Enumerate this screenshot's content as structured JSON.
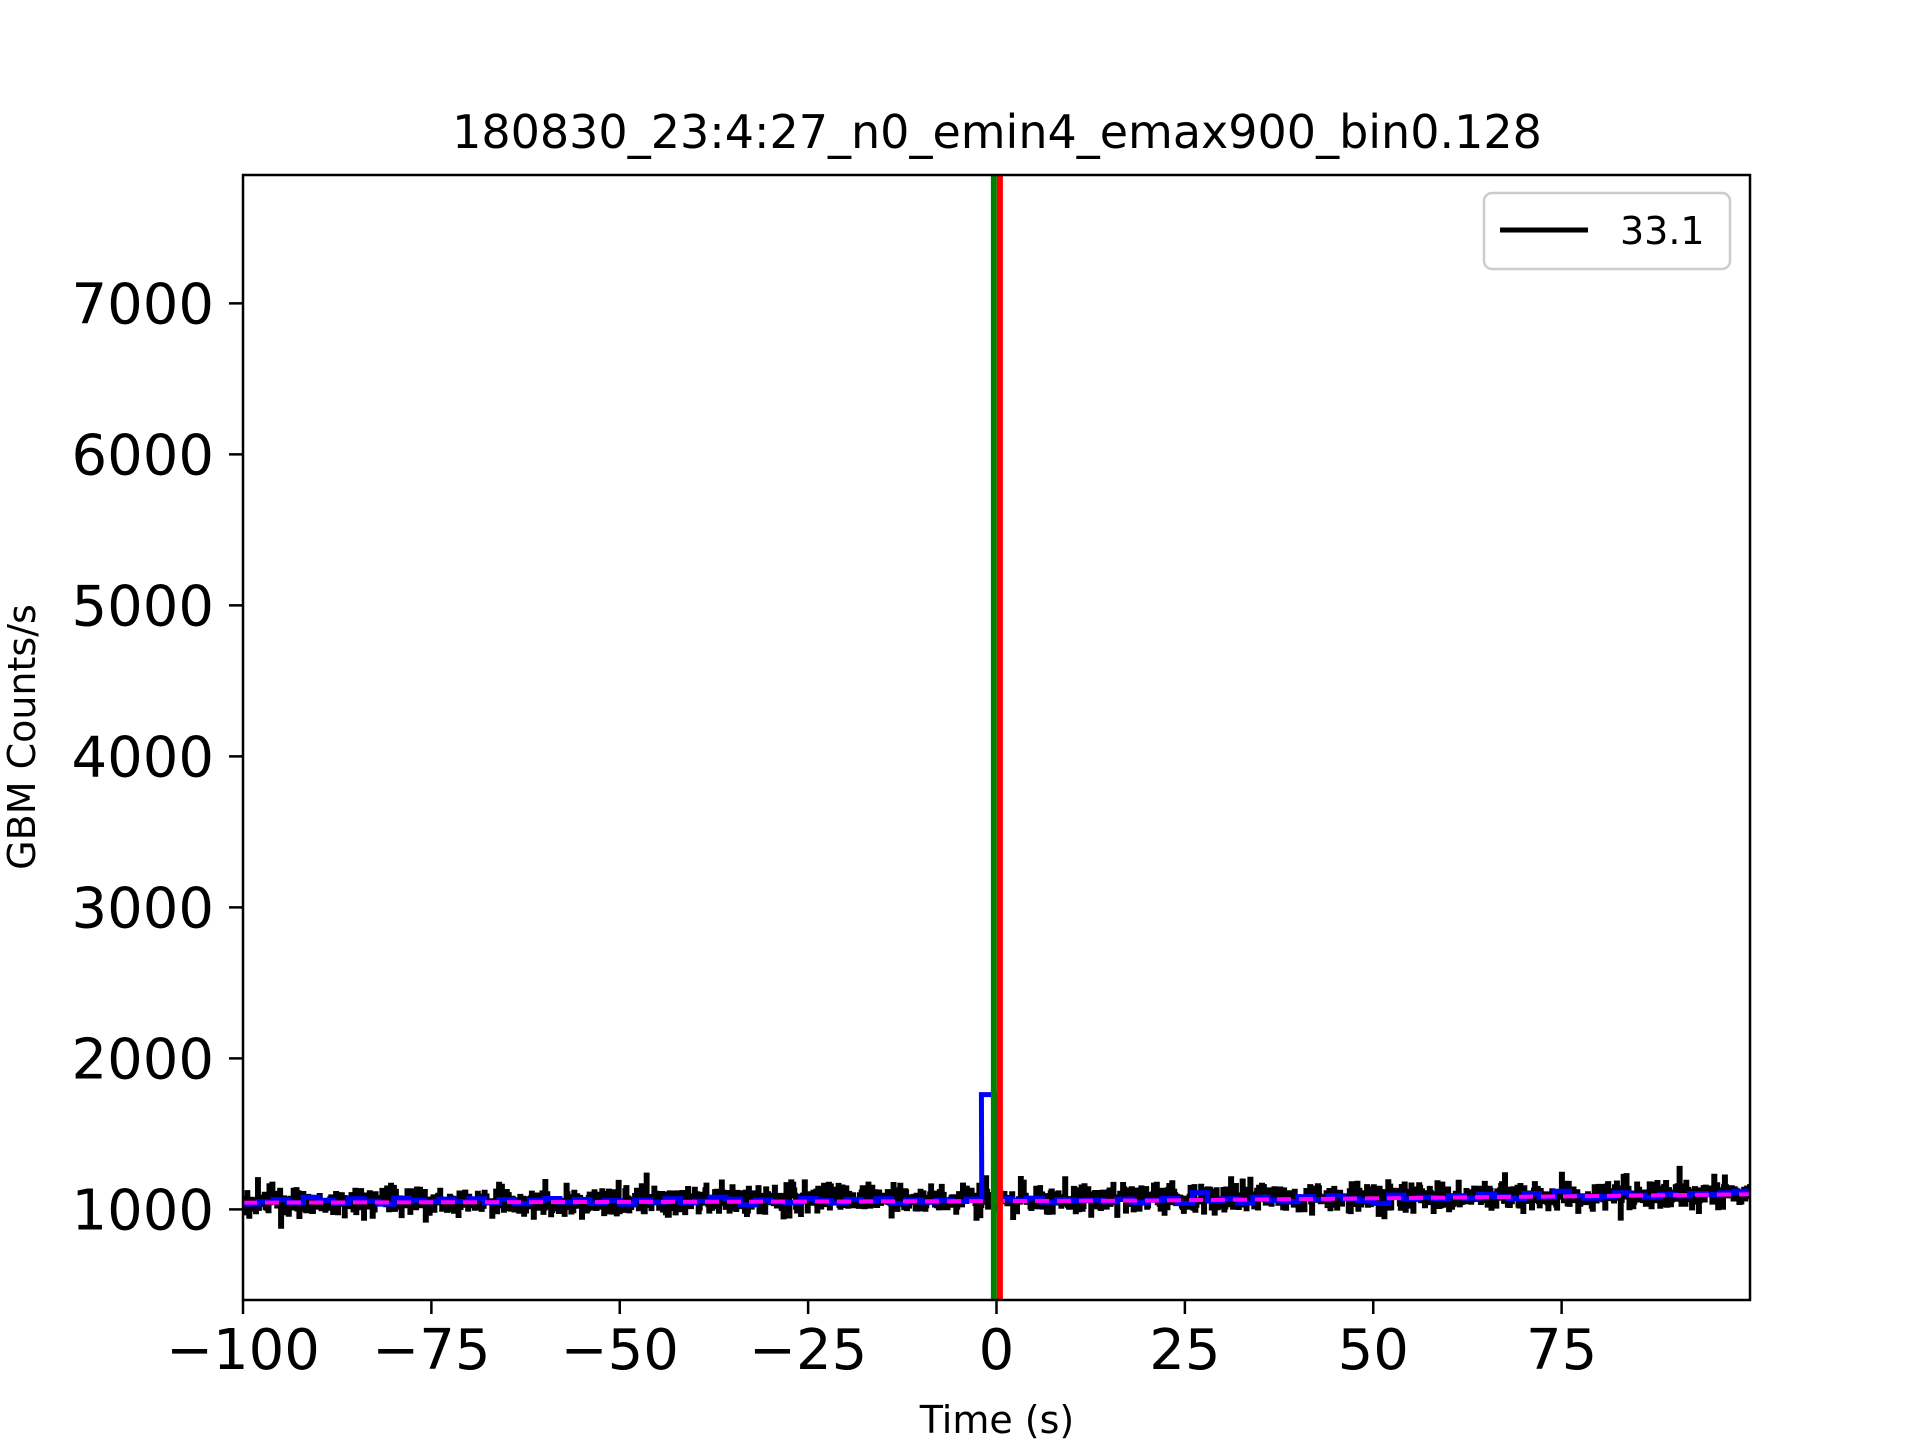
{
  "chart_data": {
    "type": "line",
    "title": "180830_23:4:27_n0_emin4_emax900_bin0.128",
    "xlabel": "Time (s)",
    "ylabel": "GBM Counts/s",
    "xlim": [
      -100,
      100
    ],
    "ylim": [
      400,
      7850
    ],
    "x_ticks": [
      -100,
      -75,
      -50,
      -25,
      0,
      25,
      50,
      75
    ],
    "x_tick_labels": [
      "−100",
      "−75",
      "−50",
      "−25",
      "0",
      "25",
      "50",
      "75"
    ],
    "y_ticks": [
      1000,
      2000,
      3000,
      4000,
      5000,
      6000,
      7000
    ],
    "y_tick_labels": [
      "1000",
      "2000",
      "3000",
      "4000",
      "5000",
      "6000",
      "7000"
    ],
    "grid": false,
    "legend": {
      "position": "top-right",
      "entries": [
        {
          "label": "33.1",
          "color": "#000000"
        }
      ]
    },
    "series": [
      {
        "name": "33.1",
        "style": "step",
        "color": "#000000",
        "bin_width": 0.128,
        "x_range": [
          -100,
          100
        ],
        "mean_start": 1045,
        "mean_end": 1095,
        "noise_amplitude": 50,
        "range_shown": [
          750,
          1370
        ]
      },
      {
        "style": "step",
        "color": "#0000ff",
        "bin_width": 2.048,
        "x": [
          -100,
          -98,
          -96,
          -94,
          -92,
          -90,
          -88,
          -86,
          -84,
          -82,
          -80,
          -78,
          -76,
          -74,
          -72,
          -70,
          -68,
          -66,
          -64,
          -62,
          -60,
          -58,
          -56,
          -54,
          -52,
          -50,
          -48,
          -46,
          -44,
          -42,
          -40,
          -38,
          -36,
          -34,
          -32,
          -30,
          -28,
          -26,
          -24,
          -22,
          -20,
          -18,
          -16,
          -14,
          -12,
          -10,
          -8,
          -6,
          -4,
          -2,
          0,
          2,
          4,
          6,
          8,
          10,
          12,
          14,
          16,
          18,
          20,
          22,
          24,
          26,
          28,
          30,
          32,
          34,
          36,
          38,
          40,
          42,
          44,
          46,
          48,
          50,
          52,
          54,
          56,
          58,
          60,
          62,
          64,
          66,
          68,
          70,
          72,
          74,
          76,
          78,
          80,
          82,
          84,
          86,
          88,
          90,
          92,
          94,
          96,
          98
        ],
        "y": [
          1035,
          1050,
          1065,
          1045,
          1080,
          1060,
          1040,
          1070,
          1055,
          1035,
          1075,
          1060,
          1050,
          1068,
          1052,
          1070,
          1045,
          1065,
          1038,
          1060,
          1072,
          1048,
          1066,
          1042,
          1058,
          1035,
          1062,
          1048,
          1070,
          1045,
          1055,
          1080,
          1068,
          1030,
          1062,
          1050,
          1045,
          1072,
          1058,
          1042,
          1066,
          1054,
          1070,
          1040,
          1062,
          1048,
          1060,
          1052,
          1068,
          1760,
          1070,
          1060,
          1075,
          1048,
          1065,
          1058,
          1062,
          1050,
          1068,
          1045,
          1060,
          1072,
          1040,
          1110,
          1055,
          1070,
          1042,
          1080,
          1060,
          1050,
          1085,
          1065,
          1090,
          1070,
          1058,
          1040,
          1095,
          1068,
          1080,
          1070,
          1090,
          1075,
          1100,
          1085,
          1070,
          1105,
          1080,
          1120,
          1090,
          1075,
          1085,
          1110,
          1095,
          1080,
          1100,
          1090,
          1105,
          1098,
          1110,
          1120
        ]
      },
      {
        "style": "dashed",
        "color": "#ff00ff",
        "x": [
          -100,
          -60,
          -20,
          20,
          60,
          100
        ],
        "y": [
          1045,
          1048,
          1052,
          1058,
          1078,
          1100
        ]
      }
    ],
    "vertical_lines": [
      {
        "x": -0.35,
        "color": "#008000"
      },
      {
        "x": 0.45,
        "color": "#ff0000"
      }
    ]
  }
}
